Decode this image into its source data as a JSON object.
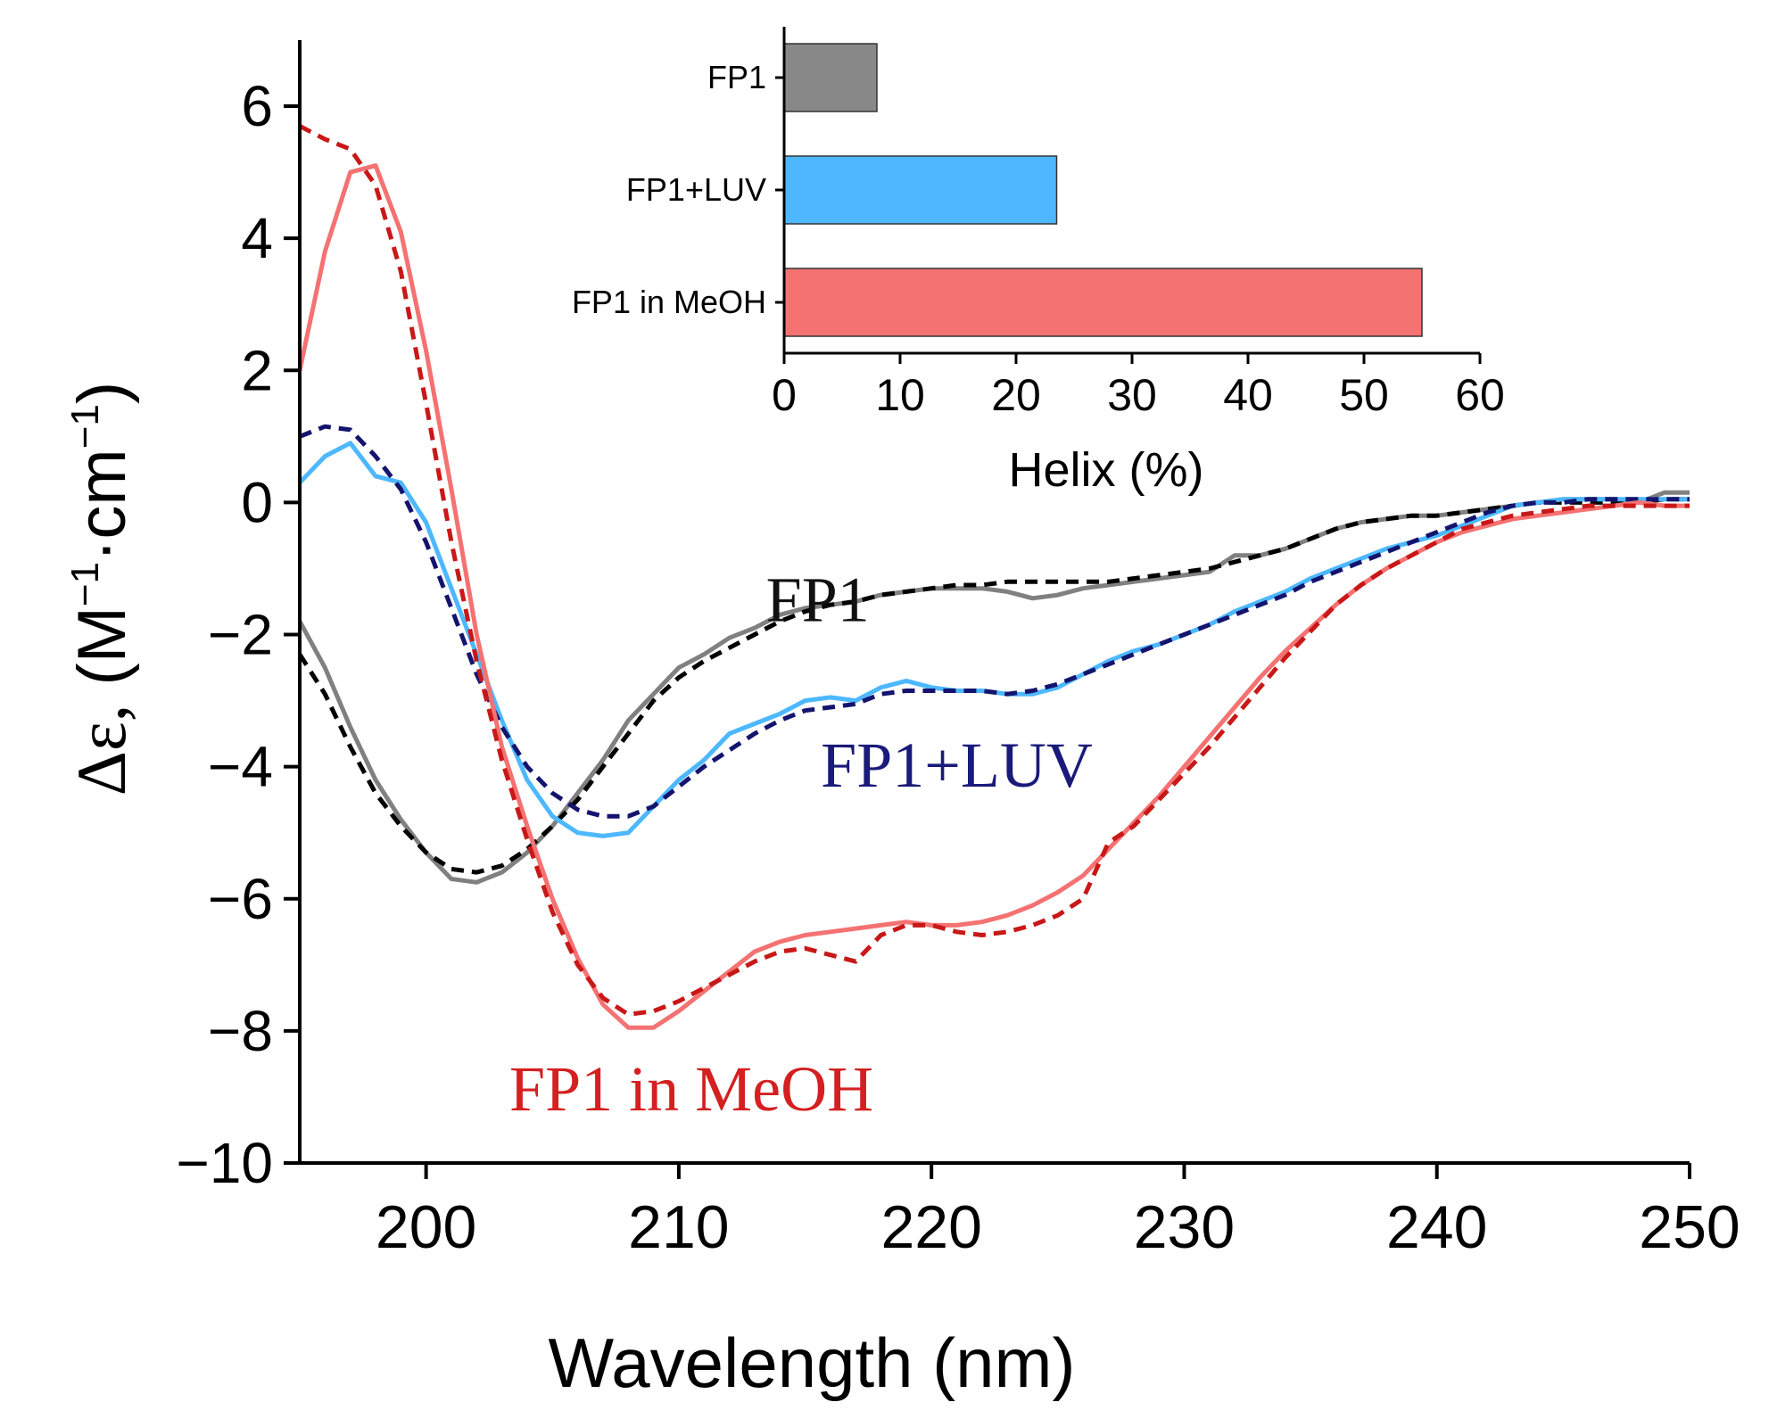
{
  "chart_data": [
    {
      "type": "line",
      "xlabel": "Wavelength (nm)",
      "ylabel_prefix": "Δε,",
      "ylabel_unit_open": " (M",
      "ylabel_exp1": "−1",
      "ylabel_mid": "·cm",
      "ylabel_exp2": "−1",
      "ylabel_close": ")",
      "xlim": [
        195,
        250
      ],
      "ylim": [
        -10,
        7
      ],
      "xticks": [
        200,
        210,
        220,
        230,
        240,
        250
      ],
      "xtick_labels": [
        "200",
        "210",
        "220",
        "230",
        "240",
        "250"
      ],
      "yticks": [
        -10,
        -8,
        -6,
        -4,
        -2,
        0,
        2,
        4,
        6
      ],
      "ytick_labels": [
        "−10",
        "−8",
        "−6",
        "−4",
        "−2",
        "0",
        "2",
        "4",
        "6"
      ],
      "annotations": [
        {
          "key": "fp1",
          "text": "FP1",
          "color": "#111111",
          "x": 215.5,
          "y": -1.8
        },
        {
          "key": "luv",
          "text": "FP1+LUV",
          "color": "#1a1a7a",
          "x": 221,
          "y": -4.3
        },
        {
          "key": "meoh",
          "text": "FP1 in MeOH",
          "color": "#d42020",
          "x": 210.5,
          "y": -9.2
        }
      ],
      "series": [
        {
          "name": "FP1",
          "color": "#808080",
          "style": "solid",
          "x": [
            195,
            196,
            197,
            198,
            199,
            200,
            201,
            202,
            203,
            204,
            205,
            206,
            207,
            208,
            209,
            210,
            211,
            212,
            213,
            214,
            215,
            216,
            217,
            218,
            219,
            220,
            221,
            222,
            223,
            224,
            225,
            226,
            227,
            228,
            229,
            230,
            231,
            232,
            233,
            234,
            235,
            236,
            237,
            238,
            239,
            240,
            241,
            242,
            243,
            244,
            245,
            246,
            247,
            248,
            249,
            250
          ],
          "y": [
            -1.8,
            -2.5,
            -3.4,
            -4.2,
            -4.8,
            -5.3,
            -5.7,
            -5.75,
            -5.6,
            -5.3,
            -4.9,
            -4.4,
            -3.9,
            -3.3,
            -2.9,
            -2.5,
            -2.3,
            -2.05,
            -1.9,
            -1.7,
            -1.6,
            -1.55,
            -1.5,
            -1.4,
            -1.35,
            -1.3,
            -1.3,
            -1.3,
            -1.35,
            -1.45,
            -1.4,
            -1.3,
            -1.25,
            -1.2,
            -1.15,
            -1.1,
            -1.05,
            -0.8,
            -0.8,
            -0.7,
            -0.55,
            -0.4,
            -0.3,
            -0.25,
            -0.2,
            -0.2,
            -0.15,
            -0.1,
            -0.05,
            0.0,
            0.05,
            0.05,
            0.05,
            0.0,
            0.15,
            0.15
          ]
        },
        {
          "name": "FP1 (dashed)",
          "color": "#000000",
          "style": "dashed",
          "x": [
            195,
            196,
            197,
            198,
            199,
            200,
            201,
            202,
            203,
            204,
            205,
            206,
            207,
            208,
            209,
            210,
            211,
            212,
            213,
            214,
            215,
            216,
            217,
            218,
            219,
            220,
            221,
            222,
            223,
            224,
            225,
            226,
            227,
            228,
            229,
            230,
            231,
            232,
            233,
            234,
            235,
            236,
            237,
            238,
            239,
            240,
            241,
            242,
            243,
            244,
            245,
            246,
            247,
            248,
            249,
            250
          ],
          "y": [
            -2.3,
            -2.9,
            -3.7,
            -4.4,
            -4.9,
            -5.3,
            -5.55,
            -5.6,
            -5.5,
            -5.25,
            -4.9,
            -4.5,
            -4.0,
            -3.5,
            -3.0,
            -2.65,
            -2.4,
            -2.2,
            -2.0,
            -1.8,
            -1.65,
            -1.55,
            -1.5,
            -1.4,
            -1.35,
            -1.3,
            -1.25,
            -1.25,
            -1.2,
            -1.2,
            -1.2,
            -1.2,
            -1.2,
            -1.15,
            -1.1,
            -1.05,
            -1.0,
            -0.9,
            -0.8,
            -0.7,
            -0.55,
            -0.4,
            -0.3,
            -0.25,
            -0.2,
            -0.2,
            -0.15,
            -0.1,
            -0.05,
            0.0,
            0.0,
            0.0,
            0.0,
            0.0,
            0.05,
            0.05
          ]
        },
        {
          "name": "FP1+LUV",
          "color": "#4db8ff",
          "style": "solid",
          "x": [
            195,
            196,
            197,
            198,
            199,
            200,
            201,
            202,
            203,
            204,
            205,
            206,
            207,
            208,
            209,
            210,
            211,
            212,
            213,
            214,
            215,
            216,
            217,
            218,
            219,
            220,
            221,
            222,
            223,
            224,
            225,
            226,
            227,
            228,
            229,
            230,
            231,
            232,
            233,
            234,
            235,
            236,
            237,
            238,
            239,
            240,
            241,
            242,
            243,
            244,
            245,
            246,
            247,
            248,
            249,
            250
          ],
          "y": [
            0.3,
            0.7,
            0.9,
            0.4,
            0.3,
            -0.3,
            -1.3,
            -2.3,
            -3.3,
            -4.2,
            -4.75,
            -5.0,
            -5.05,
            -5.0,
            -4.6,
            -4.2,
            -3.9,
            -3.5,
            -3.35,
            -3.2,
            -3.0,
            -2.95,
            -3.0,
            -2.8,
            -2.7,
            -2.8,
            -2.85,
            -2.85,
            -2.9,
            -2.9,
            -2.8,
            -2.6,
            -2.4,
            -2.25,
            -2.15,
            -2.0,
            -1.85,
            -1.65,
            -1.5,
            -1.35,
            -1.15,
            -1.0,
            -0.85,
            -0.7,
            -0.6,
            -0.5,
            -0.35,
            -0.2,
            -0.05,
            0.0,
            0.05,
            0.05,
            0.05,
            0.05,
            0.05,
            0.05
          ]
        },
        {
          "name": "FP1+LUV (dashed)",
          "color": "#14146e",
          "style": "dashed",
          "x": [
            195,
            196,
            197,
            198,
            199,
            200,
            201,
            202,
            203,
            204,
            205,
            206,
            207,
            208,
            209,
            210,
            211,
            212,
            213,
            214,
            215,
            216,
            217,
            218,
            219,
            220,
            221,
            222,
            223,
            224,
            225,
            226,
            227,
            228,
            229,
            230,
            231,
            232,
            233,
            234,
            235,
            236,
            237,
            238,
            239,
            240,
            241,
            242,
            243,
            244,
            245,
            246,
            247,
            248,
            249,
            250
          ],
          "y": [
            1.0,
            1.15,
            1.1,
            0.7,
            0.2,
            -0.6,
            -1.6,
            -2.6,
            -3.4,
            -4.0,
            -4.4,
            -4.65,
            -4.75,
            -4.75,
            -4.6,
            -4.3,
            -4.0,
            -3.75,
            -3.5,
            -3.3,
            -3.15,
            -3.1,
            -3.05,
            -2.9,
            -2.85,
            -2.85,
            -2.85,
            -2.85,
            -2.9,
            -2.85,
            -2.75,
            -2.6,
            -2.45,
            -2.3,
            -2.15,
            -2.0,
            -1.85,
            -1.7,
            -1.55,
            -1.4,
            -1.2,
            -1.05,
            -0.9,
            -0.75,
            -0.6,
            -0.45,
            -0.3,
            -0.15,
            -0.05,
            0.0,
            0.0,
            0.05,
            0.05,
            0.05,
            0.05,
            0.05
          ]
        },
        {
          "name": "FP1 in MeOH",
          "color": "#f47272",
          "style": "solid",
          "x": [
            195,
            196,
            197,
            198,
            199,
            200,
            201,
            202,
            203,
            204,
            205,
            206,
            207,
            208,
            209,
            210,
            211,
            212,
            213,
            214,
            215,
            216,
            217,
            218,
            219,
            220,
            221,
            222,
            223,
            224,
            225,
            226,
            227,
            228,
            229,
            230,
            231,
            232,
            233,
            234,
            235,
            236,
            237,
            238,
            239,
            240,
            241,
            242,
            243,
            244,
            245,
            246,
            247,
            248,
            249,
            250
          ],
          "y": [
            2.0,
            3.8,
            5.0,
            5.1,
            4.1,
            2.3,
            0.2,
            -2.0,
            -3.7,
            -4.9,
            -6.0,
            -6.9,
            -7.6,
            -7.95,
            -7.95,
            -7.7,
            -7.4,
            -7.1,
            -6.8,
            -6.65,
            -6.55,
            -6.5,
            -6.45,
            -6.4,
            -6.35,
            -6.4,
            -6.4,
            -6.35,
            -6.25,
            -6.1,
            -5.9,
            -5.65,
            -5.25,
            -4.85,
            -4.45,
            -4.0,
            -3.55,
            -3.1,
            -2.65,
            -2.25,
            -1.9,
            -1.55,
            -1.25,
            -1.0,
            -0.8,
            -0.6,
            -0.45,
            -0.35,
            -0.25,
            -0.2,
            -0.15,
            -0.1,
            -0.05,
            0.0,
            -0.05,
            -0.05
          ]
        },
        {
          "name": "FP1 in MeOH (dashed)",
          "color": "#c81818",
          "style": "dashed",
          "x": [
            195,
            196,
            197,
            198,
            199,
            200,
            201,
            202,
            203,
            204,
            205,
            206,
            207,
            208,
            209,
            210,
            211,
            212,
            213,
            214,
            215,
            216,
            217,
            218,
            219,
            220,
            221,
            222,
            223,
            224,
            225,
            226,
            227,
            228,
            229,
            230,
            231,
            232,
            233,
            234,
            235,
            236,
            237,
            238,
            239,
            240,
            241,
            242,
            243,
            244,
            245,
            246,
            247,
            248,
            249,
            250
          ],
          "y": [
            5.7,
            5.5,
            5.35,
            4.8,
            3.5,
            1.5,
            -0.6,
            -2.4,
            -3.9,
            -5.1,
            -6.2,
            -7.0,
            -7.5,
            -7.75,
            -7.7,
            -7.55,
            -7.35,
            -7.15,
            -6.95,
            -6.8,
            -6.75,
            -6.85,
            -6.95,
            -6.55,
            -6.4,
            -6.4,
            -6.5,
            -6.55,
            -6.5,
            -6.4,
            -6.25,
            -6.0,
            -5.15,
            -4.9,
            -4.5,
            -4.1,
            -3.7,
            -3.25,
            -2.8,
            -2.35,
            -1.95,
            -1.55,
            -1.25,
            -1.0,
            -0.8,
            -0.6,
            -0.4,
            -0.3,
            -0.2,
            -0.15,
            -0.1,
            -0.05,
            -0.05,
            -0.05,
            -0.05,
            -0.05
          ]
        }
      ]
    },
    {
      "type": "bar",
      "orientation": "horizontal",
      "xlabel": "Helix (%)",
      "xlim": [
        0,
        60
      ],
      "xticks": [
        0,
        10,
        20,
        30,
        40,
        50,
        60
      ],
      "xtick_labels": [
        "0",
        "10",
        "20",
        "30",
        "40",
        "50",
        "60"
      ],
      "categories": [
        "FP1",
        "FP1+LUV",
        "FP1 in MeOH"
      ],
      "values": [
        8,
        23.5,
        55
      ],
      "colors": [
        "#888888",
        "#4db8ff",
        "#f47272"
      ]
    }
  ]
}
